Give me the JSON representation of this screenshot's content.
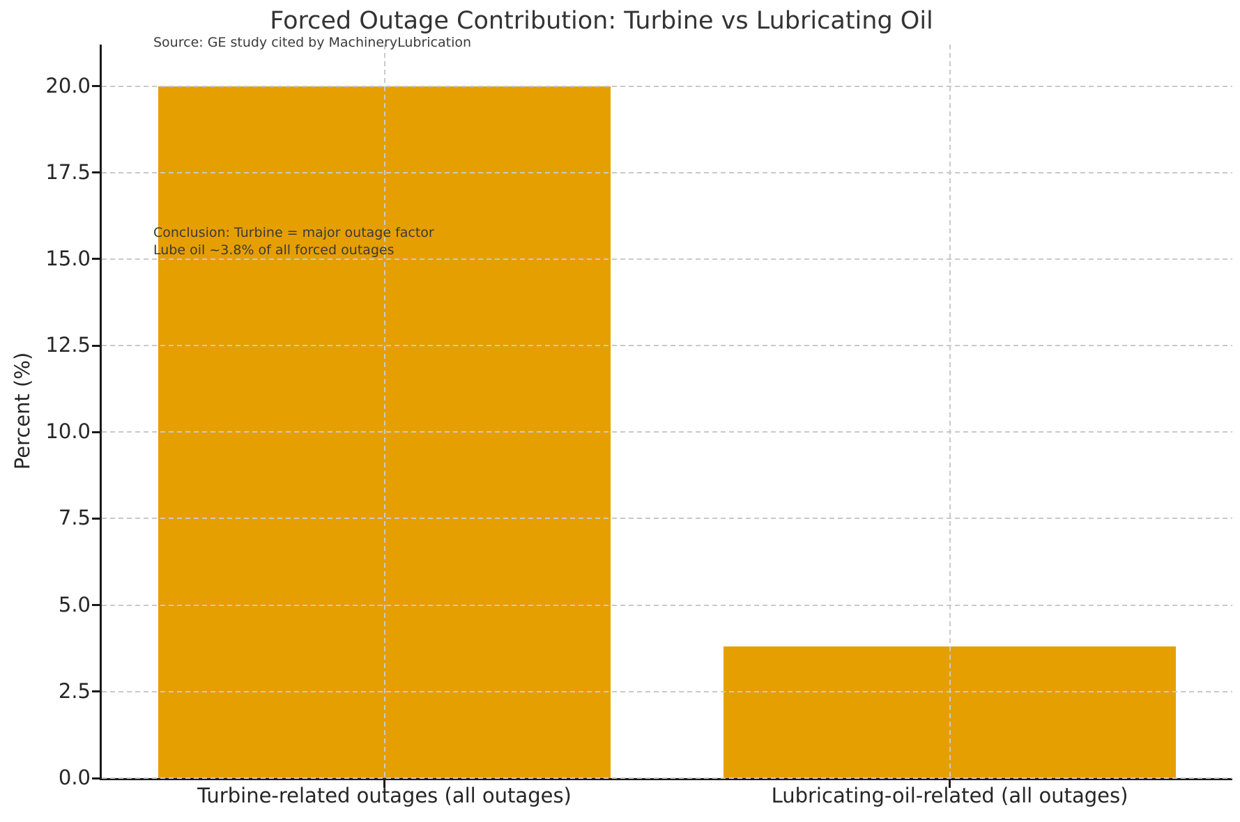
{
  "chart_data": {
    "type": "bar",
    "title": "Forced Outage Contribution: Turbine vs Lubricating Oil",
    "source_note": "Source: GE study cited by MachineryLubrication",
    "annotation_lines": [
      "Conclusion: Turbine = major outage factor",
      "Lube oil ~3.8% of all forced outages"
    ],
    "categories": [
      "Turbine-related outages (all outages)",
      "Lubricating-oil-related (all outages)"
    ],
    "values": [
      20.0,
      3.8
    ],
    "xlabel": "",
    "ylabel": "Percent (%)",
    "yticks": [
      "0.0",
      "2.5",
      "5.0",
      "7.5",
      "10.0",
      "12.5",
      "15.0",
      "17.5",
      "20.0"
    ],
    "ylim": [
      0,
      21.2
    ],
    "bar_color": "#E69F00",
    "grid_color": "#c9c9c9",
    "axis_color": "#1a1a1a",
    "text_color": "#262626",
    "grid": "dashed, horizontal at each ytick and vertical at each category center, drawn above bars",
    "legend": "none"
  }
}
